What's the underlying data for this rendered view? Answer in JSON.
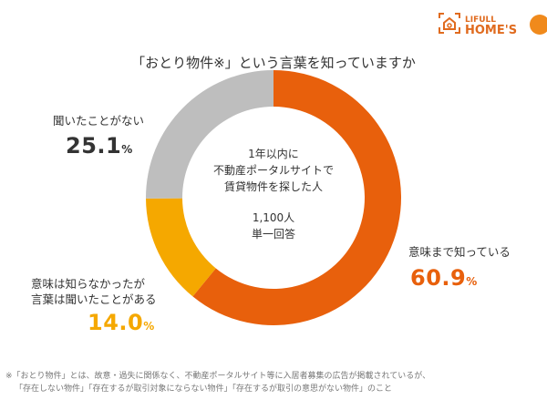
{
  "title": "「おとり物件※」という言葉を知っていますか",
  "logo": {
    "text_top": "LIFULL",
    "text_bottom": "HOME'S",
    "color": "#E06B1F"
  },
  "chart_data": {
    "type": "pie",
    "donut": true,
    "categories": [
      "意味まで知っている",
      "意味は知らなかったが言葉は聞いたことがある",
      "聞いたことがない"
    ],
    "values": [
      60.9,
      14.0,
      25.1
    ],
    "value_labels": [
      "60.9",
      "14.0",
      "25.1"
    ],
    "unit": "%",
    "colors": [
      "#E8600C",
      "#F5A800",
      "#BEBEBE"
    ],
    "center_text": [
      "1年以内に",
      "不動産ポータルサイトで",
      "賃貸物件を探した人"
    ],
    "sample": "1,100人",
    "answer_type": "単一回答"
  },
  "labels": {
    "known": "意味まで知っている",
    "heard_line1": "意味は知らなかったが",
    "heard_line2": "言葉は聞いたことがある",
    "never": "聞いたことがない"
  },
  "note": {
    "line1": "※「おとり物件」とは、故意・過失に関係なく、不動産ポータルサイト等に入居者募集の広告が掲載されているが、",
    "line2": "「存在しない物件」「存在するが取引対象にならない物件」「存在するが取引の意思がない物件」のこと"
  }
}
